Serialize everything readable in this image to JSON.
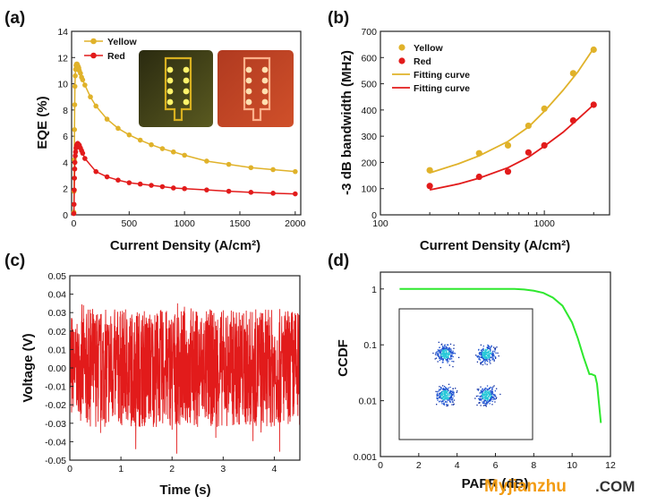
{
  "panel_labels": [
    "(a)",
    "(b)",
    "(c)",
    "(d)"
  ],
  "watermark": {
    "brand": "Myjianzhu",
    "suffix": ".COM"
  },
  "colors": {
    "yellow": "#e0b22a",
    "red": "#e21b1b",
    "green": "#2ee82e",
    "blue": "#1a4fd0",
    "cyan": "#28c8d8"
  },
  "chart_data": [
    {
      "type": "line",
      "panel": "(a)",
      "xlabel": "Current Density (A/cm²)",
      "ylabel": "EQE (%)",
      "xlim": [
        -20,
        2050
      ],
      "ylim": [
        0,
        14
      ],
      "xticks": [
        0,
        500,
        1000,
        1500,
        2000
      ],
      "yticks": [
        0,
        2,
        4,
        6,
        8,
        10,
        12,
        14
      ],
      "legend": "top-left",
      "inset": "photos of yellow and red micro-LED arrays",
      "series": [
        {
          "name": "Yellow",
          "color": "#e0b22a",
          "x": [
            0,
            2,
            4,
            6,
            8,
            10,
            13,
            16,
            20,
            25,
            30,
            35,
            40,
            45,
            50,
            60,
            70,
            80,
            100,
            150,
            200,
            300,
            400,
            500,
            600,
            700,
            800,
            900,
            1000,
            1200,
            1400,
            1600,
            1800,
            2000
          ],
          "y": [
            0.2,
            1.8,
            4.2,
            6.5,
            8.4,
            9.8,
            10.6,
            11.1,
            11.4,
            11.5,
            11.5,
            11.4,
            11.3,
            11.2,
            11.0,
            10.8,
            10.5,
            10.3,
            9.9,
            9.0,
            8.3,
            7.3,
            6.6,
            6.1,
            5.7,
            5.35,
            5.05,
            4.8,
            4.55,
            4.1,
            3.85,
            3.6,
            3.45,
            3.3
          ]
        },
        {
          "name": "Red",
          "color": "#e21b1b",
          "x": [
            0,
            2,
            4,
            6,
            8,
            10,
            13,
            16,
            20,
            25,
            30,
            35,
            40,
            45,
            50,
            60,
            70,
            80,
            100,
            200,
            300,
            400,
            500,
            600,
            700,
            800,
            900,
            1000,
            1200,
            1400,
            1600,
            1800,
            2000
          ],
          "y": [
            0.1,
            0.8,
            1.9,
            2.8,
            3.5,
            4.0,
            4.5,
            4.8,
            5.1,
            5.3,
            5.4,
            5.45,
            5.4,
            5.35,
            5.3,
            5.1,
            4.9,
            4.7,
            4.3,
            3.3,
            2.9,
            2.65,
            2.45,
            2.35,
            2.25,
            2.15,
            2.05,
            2.0,
            1.9,
            1.8,
            1.72,
            1.65,
            1.6
          ]
        }
      ]
    },
    {
      "type": "scatter",
      "panel": "(b)",
      "xlabel": "Current Density (A/cm²)",
      "ylabel": "-3 dB bandwidth (MHz)",
      "xscale": "log",
      "xlim": [
        100,
        2500
      ],
      "ylim": [
        0,
        700
      ],
      "xticks": [
        100,
        1000
      ],
      "yticks": [
        0,
        100,
        200,
        300,
        400,
        500,
        600,
        700
      ],
      "legend": "top-left",
      "series": [
        {
          "name": "Yellow",
          "color": "#e0b22a",
          "x": [
            200,
            400,
            600,
            800,
            1000,
            1500,
            2000
          ],
          "y": [
            170,
            235,
            265,
            340,
            405,
            540,
            630
          ]
        },
        {
          "name": "Red",
          "color": "#e21b1b",
          "x": [
            200,
            400,
            600,
            800,
            1000,
            1500,
            2000
          ],
          "y": [
            110,
            145,
            165,
            238,
            265,
            360,
            420
          ]
        }
      ],
      "fits": [
        {
          "name": "Fitting curve",
          "color": "#e0b22a",
          "x": [
            200,
            300,
            400,
            600,
            800,
            1000,
            1300,
            1600,
            2000
          ],
          "y": [
            160,
            195,
            225,
            280,
            335,
            395,
            475,
            545,
            635
          ]
        },
        {
          "name": "Fitting curve",
          "color": "#e21b1b",
          "x": [
            200,
            300,
            400,
            600,
            800,
            1000,
            1300,
            1600,
            2000
          ],
          "y": [
            95,
            118,
            140,
            180,
            220,
            262,
            315,
            365,
            420
          ]
        }
      ]
    },
    {
      "type": "line",
      "panel": "(c)",
      "xlabel": "Time (s)",
      "ylabel": "Voltage (V)",
      "xlim": [
        0,
        4.5
      ],
      "ylim": [
        -0.05,
        0.05
      ],
      "xticks": [
        0,
        1,
        2,
        3,
        4
      ],
      "yticks": [
        -0.05,
        -0.04,
        -0.03,
        -0.02,
        -0.01,
        0.0,
        0.01,
        0.02,
        0.03,
        0.04,
        0.05
      ],
      "grid": false,
      "series": [
        {
          "color": "#e21b1b",
          "x_range": [
            0,
            4.5
          ],
          "envelope_lower": -0.032,
          "envelope_upper": 0.032,
          "peak_min": -0.047,
          "peak_max": 0.035
        }
      ]
    },
    {
      "type": "line",
      "panel": "(d)",
      "xlabel": "PAPR (dB)",
      "ylabel": "CCDF",
      "yscale": "log",
      "xlim": [
        0,
        12
      ],
      "ylim": [
        0.001,
        2
      ],
      "xticks": [
        0,
        2,
        4,
        6,
        8,
        10,
        12
      ],
      "yticks": [
        0.001,
        0.01,
        0.1,
        1
      ],
      "inset": "16-QAM constellation diagram",
      "series": [
        {
          "color": "#2ee82e",
          "x": [
            1.0,
            7.0,
            7.5,
            8.0,
            8.5,
            9.0,
            9.5,
            10.0,
            10.3,
            10.6,
            10.9,
            11.0,
            11.2,
            11.3,
            11.4,
            11.5
          ],
          "y": [
            1.0,
            1.0,
            0.98,
            0.93,
            0.85,
            0.7,
            0.5,
            0.25,
            0.13,
            0.06,
            0.03,
            0.03,
            0.028,
            0.02,
            0.009,
            0.004
          ]
        }
      ],
      "inset_points": [
        {
          "cx": -1,
          "cy": 1
        },
        {
          "cx": 1,
          "cy": 1
        },
        {
          "cx": -1,
          "cy": -1
        },
        {
          "cx": 1,
          "cy": -1
        }
      ]
    }
  ]
}
